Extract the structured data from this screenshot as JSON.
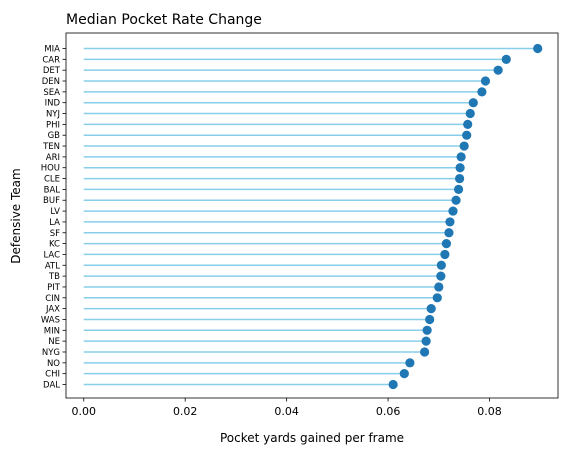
{
  "chart_data": {
    "type": "lollipop",
    "title": "Median Pocket Rate Change",
    "xlabel": "Pocket yards gained per frame",
    "ylabel": "Defensive Team",
    "xlim": [
      -0.0035,
      0.0935
    ],
    "xticks": [
      0.0,
      0.02,
      0.04,
      0.06,
      0.08
    ],
    "xtick_labels": [
      "0.00",
      "0.02",
      "0.04",
      "0.06",
      "0.08"
    ],
    "grid": false,
    "colors": {
      "stem": "#87ceeb",
      "marker": "#1f77b4",
      "axis": "#000000"
    },
    "categories": [
      "MIA",
      "CAR",
      "DET",
      "DEN",
      "SEA",
      "IND",
      "NYJ",
      "PHI",
      "GB",
      "TEN",
      "ARI",
      "HOU",
      "CLE",
      "BAL",
      "BUF",
      "LV",
      "LA",
      "SF",
      "KC",
      "LAC",
      "ATL",
      "TB",
      "PIT",
      "CIN",
      "JAX",
      "WAS",
      "MIN",
      "NE",
      "NYG",
      "NO",
      "CHI",
      "DAL"
    ],
    "values": [
      0.0895,
      0.0833,
      0.0817,
      0.0792,
      0.0785,
      0.0768,
      0.0762,
      0.0757,
      0.0755,
      0.075,
      0.0744,
      0.0742,
      0.0741,
      0.0739,
      0.0734,
      0.0728,
      0.0722,
      0.072,
      0.0715,
      0.0712,
      0.0705,
      0.0704,
      0.07,
      0.0697,
      0.0685,
      0.0682,
      0.0677,
      0.0675,
      0.0672,
      0.0643,
      0.0632,
      0.061
    ]
  }
}
